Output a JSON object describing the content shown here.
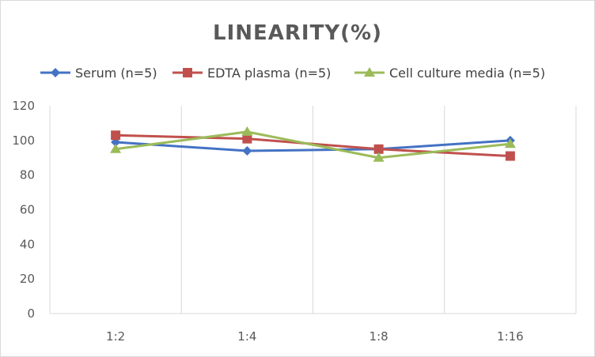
{
  "chart_data": {
    "type": "line",
    "title": "LINEARITY(%)",
    "categories": [
      "1:2",
      "1:4",
      "1:8",
      "1:16"
    ],
    "ylim": [
      0,
      120
    ],
    "yticks": [
      0,
      20,
      40,
      60,
      80,
      100,
      120
    ],
    "grid": "vertical",
    "legend_position": "top",
    "series": [
      {
        "name": "Serum (n=5)",
        "values": [
          99,
          94,
          95,
          100
        ],
        "color": "#4472c4",
        "marker": "diamond"
      },
      {
        "name": "EDTA plasma (n=5)",
        "values": [
          103,
          101,
          95,
          91
        ],
        "color": "#c0504d",
        "marker": "square"
      },
      {
        "name": "Cell culture media (n=5)",
        "values": [
          95,
          105,
          90,
          98
        ],
        "color": "#9bbb59",
        "marker": "triangle"
      }
    ]
  }
}
